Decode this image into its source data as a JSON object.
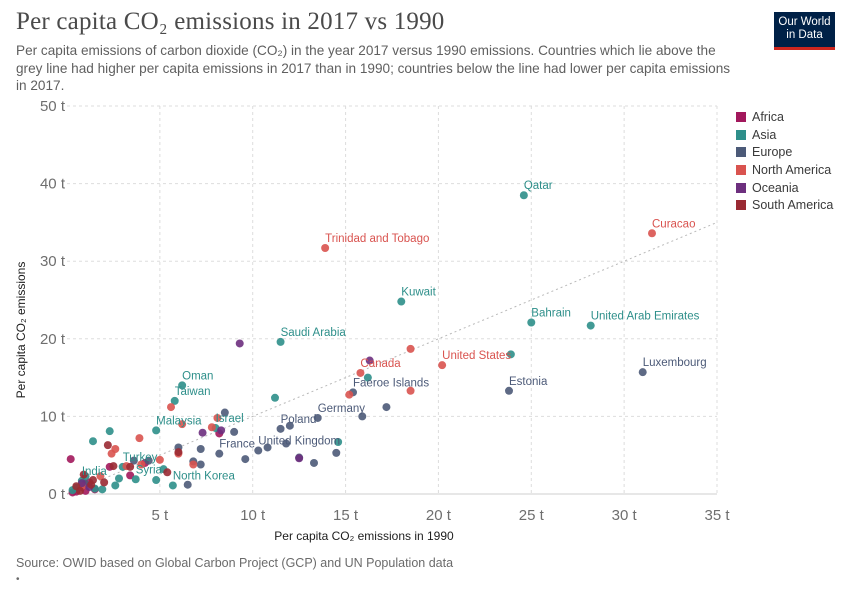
{
  "header": {
    "title": "Per capita CO₂ emissions in 2017 vs 1990",
    "subtitle": "Per capita emissions of carbon dioxide (CO₂) in the year 2017 versus 1990 emissions. Countries which lie above the grey line had higher per capita emissions in 2017 than in 1990; countries below the line had lower per capita emissions in 2017.",
    "logo_line1": "Our World",
    "logo_line2": "in Data"
  },
  "footer": {
    "source": "Source: OWID based on Global Carbon Project (GCP) and UN Population data",
    "bullet": "•"
  },
  "colors": {
    "Africa": "#a2185c",
    "Asia": "#2e8f8a",
    "Europe": "#4c5a78",
    "North America": "#d9534f",
    "Oceania": "#6d2f7e",
    "South America": "#9a2a33",
    "diagonal": "#b9b9b9",
    "grid": "#dddddd"
  },
  "chart_data": {
    "type": "scatter",
    "xlabel": "Per capita CO₂ emissions in 1990",
    "ylabel": "Per capita CO₂ emissions",
    "xlim": [
      0,
      35
    ],
    "ylim": [
      0,
      50
    ],
    "xticks": [
      5,
      10,
      15,
      20,
      25,
      30,
      35
    ],
    "xtick_labels": [
      "5 t",
      "10 t",
      "15 t",
      "20 t",
      "25 t",
      "30 t",
      "35 t"
    ],
    "yticks": [
      0,
      10,
      20,
      30,
      40,
      50
    ],
    "ytick_labels": [
      "0 t",
      "10 t",
      "20 t",
      "30 t",
      "40 t",
      "50 t"
    ],
    "grid": true,
    "legend_position": "right",
    "reference_line": "y = x",
    "series": [
      {
        "name": "Africa",
        "points": [
          [
            0.2,
            4.5
          ],
          [
            0.5,
            0.3
          ],
          [
            0.8,
            0.9
          ],
          [
            1.2,
            1.5
          ],
          [
            1.5,
            0.6
          ],
          [
            2.3,
            3.5
          ],
          [
            3.4,
            2.4
          ],
          [
            4.2,
            4.0
          ],
          [
            8.2,
            7.8
          ],
          [
            0.3,
            0.2
          ],
          [
            1.0,
            0.4
          ]
        ]
      },
      {
        "name": "Asia",
        "points": [
          [
            24.6,
            38.5
          ],
          [
            18.0,
            24.8
          ],
          [
            25.0,
            22.1
          ],
          [
            28.2,
            21.7
          ],
          [
            11.5,
            19.6
          ],
          [
            6.2,
            14.0
          ],
          [
            5.8,
            12.0
          ],
          [
            4.8,
            8.2
          ],
          [
            2.3,
            8.1
          ],
          [
            1.4,
            6.8
          ],
          [
            0.8,
            1.7
          ],
          [
            3.0,
            3.5
          ],
          [
            4.8,
            1.8
          ],
          [
            5.7,
            1.1
          ],
          [
            23.9,
            18.0
          ],
          [
            11.2,
            12.4
          ],
          [
            16.2,
            15.0
          ],
          [
            8.0,
            8.5
          ],
          [
            0.3,
            0.5
          ],
          [
            1.5,
            0.7
          ],
          [
            5.2,
            3.2
          ],
          [
            2.8,
            2.0
          ],
          [
            14.6,
            6.7
          ],
          [
            1.0,
            2.3
          ],
          [
            3.7,
            1.9
          ],
          [
            2.6,
            1.1
          ],
          [
            0.5,
            0.8
          ],
          [
            1.9,
            0.6
          ]
        ]
      },
      {
        "name": "Europe",
        "points": [
          [
            31.0,
            15.7
          ],
          [
            23.8,
            13.3
          ],
          [
            15.4,
            13.1
          ],
          [
            13.5,
            9.8
          ],
          [
            11.5,
            8.4
          ],
          [
            10.3,
            5.6
          ],
          [
            8.2,
            5.2
          ],
          [
            9.0,
            8.0
          ],
          [
            17.2,
            11.2
          ],
          [
            12.0,
            8.8
          ],
          [
            15.9,
            10.0
          ],
          [
            10.8,
            6.0
          ],
          [
            11.8,
            6.5
          ],
          [
            13.3,
            4.0
          ],
          [
            9.6,
            4.5
          ],
          [
            6.8,
            4.2
          ],
          [
            8.5,
            10.5
          ],
          [
            7.2,
            5.8
          ],
          [
            4.4,
            4.3
          ],
          [
            7.2,
            3.8
          ],
          [
            6.5,
            1.2
          ],
          [
            3.6,
            4.3
          ],
          [
            12.5,
            4.7
          ],
          [
            14.5,
            5.3
          ],
          [
            6.0,
            6.0
          ],
          [
            1.0,
            1.3
          ]
        ]
      },
      {
        "name": "North America",
        "points": [
          [
            31.5,
            33.6
          ],
          [
            13.9,
            31.7
          ],
          [
            20.2,
            16.6
          ],
          [
            15.8,
            15.6
          ],
          [
            18.5,
            18.7
          ],
          [
            18.5,
            13.3
          ],
          [
            15.2,
            12.8
          ],
          [
            5.6,
            11.2
          ],
          [
            6.2,
            9.0
          ],
          [
            8.1,
            9.8
          ],
          [
            3.9,
            7.2
          ],
          [
            2.6,
            5.8
          ],
          [
            2.4,
            5.2
          ],
          [
            4.0,
            3.8
          ],
          [
            1.8,
            2.3
          ],
          [
            6.0,
            5.2
          ],
          [
            6.8,
            3.8
          ],
          [
            7.8,
            8.6
          ],
          [
            5.0,
            4.4
          ],
          [
            3.2,
            3.6
          ],
          [
            0.8,
            1.0
          ]
        ]
      },
      {
        "name": "Oceania",
        "points": [
          [
            16.3,
            17.2
          ],
          [
            9.3,
            19.4
          ],
          [
            7.3,
            7.9
          ],
          [
            8.3,
            8.2
          ],
          [
            12.5,
            4.6
          ],
          [
            1.2,
            0.9
          ],
          [
            0.8,
            1.4
          ]
        ]
      },
      {
        "name": "South America",
        "points": [
          [
            2.2,
            6.3
          ],
          [
            2.5,
            3.6
          ],
          [
            3.4,
            3.5
          ],
          [
            5.4,
            2.8
          ],
          [
            6.0,
            5.4
          ],
          [
            0.5,
            1.0
          ],
          [
            1.4,
            1.8
          ],
          [
            0.9,
            2.5
          ],
          [
            0.7,
            0.4
          ],
          [
            1.3,
            1.2
          ],
          [
            2.0,
            1.5
          ]
        ]
      }
    ],
    "annotations": [
      {
        "text": "Qatar",
        "x": 24.6,
        "y": 38.5,
        "region": "Asia"
      },
      {
        "text": "Curacao",
        "x": 31.5,
        "y": 33.6,
        "region": "North America"
      },
      {
        "text": "Trinidad and Tobago",
        "x": 13.9,
        "y": 31.7,
        "region": "North America"
      },
      {
        "text": "Kuwait",
        "x": 18.0,
        "y": 24.8,
        "region": "Asia"
      },
      {
        "text": "Bahrain",
        "x": 25.0,
        "y": 22.1,
        "region": "Asia"
      },
      {
        "text": "United Arab Emirates",
        "x": 28.2,
        "y": 21.7,
        "region": "Asia"
      },
      {
        "text": "Saudi Arabia",
        "x": 11.5,
        "y": 19.6,
        "region": "Asia"
      },
      {
        "text": "United States",
        "x": 20.2,
        "y": 16.6,
        "region": "North America"
      },
      {
        "text": "Luxembourg",
        "x": 31.0,
        "y": 15.7,
        "region": "Europe"
      },
      {
        "text": "Canada",
        "x": 15.8,
        "y": 15.6,
        "region": "North America"
      },
      {
        "text": "Oman",
        "x": 6.2,
        "y": 14.0,
        "region": "Asia"
      },
      {
        "text": "Faeroe Islands",
        "x": 15.4,
        "y": 13.1,
        "region": "Europe"
      },
      {
        "text": "Estonia",
        "x": 23.8,
        "y": 13.3,
        "region": "Europe"
      },
      {
        "text": "Taiwan",
        "x": 5.8,
        "y": 12.0,
        "region": "Asia"
      },
      {
        "text": "Germany",
        "x": 13.5,
        "y": 9.8,
        "region": "Europe"
      },
      {
        "text": "Poland",
        "x": 11.5,
        "y": 8.4,
        "region": "Europe"
      },
      {
        "text": "Malaysia",
        "x": 4.8,
        "y": 8.2,
        "region": "Asia"
      },
      {
        "text": "Israel",
        "x": 8.0,
        "y": 8.5,
        "region": "Asia"
      },
      {
        "text": "United Kingdom",
        "x": 10.3,
        "y": 5.6,
        "region": "Europe"
      },
      {
        "text": "France",
        "x": 8.2,
        "y": 5.2,
        "region": "Europe"
      },
      {
        "text": "Turkey",
        "x": 3.0,
        "y": 3.5,
        "region": "Asia"
      },
      {
        "text": "India",
        "x": 0.8,
        "y": 1.7,
        "region": "Asia"
      },
      {
        "text": "Syria",
        "x": 3.7,
        "y": 1.9,
        "region": "Asia"
      },
      {
        "text": "North Korea",
        "x": 5.7,
        "y": 1.1,
        "region": "Asia"
      }
    ]
  }
}
